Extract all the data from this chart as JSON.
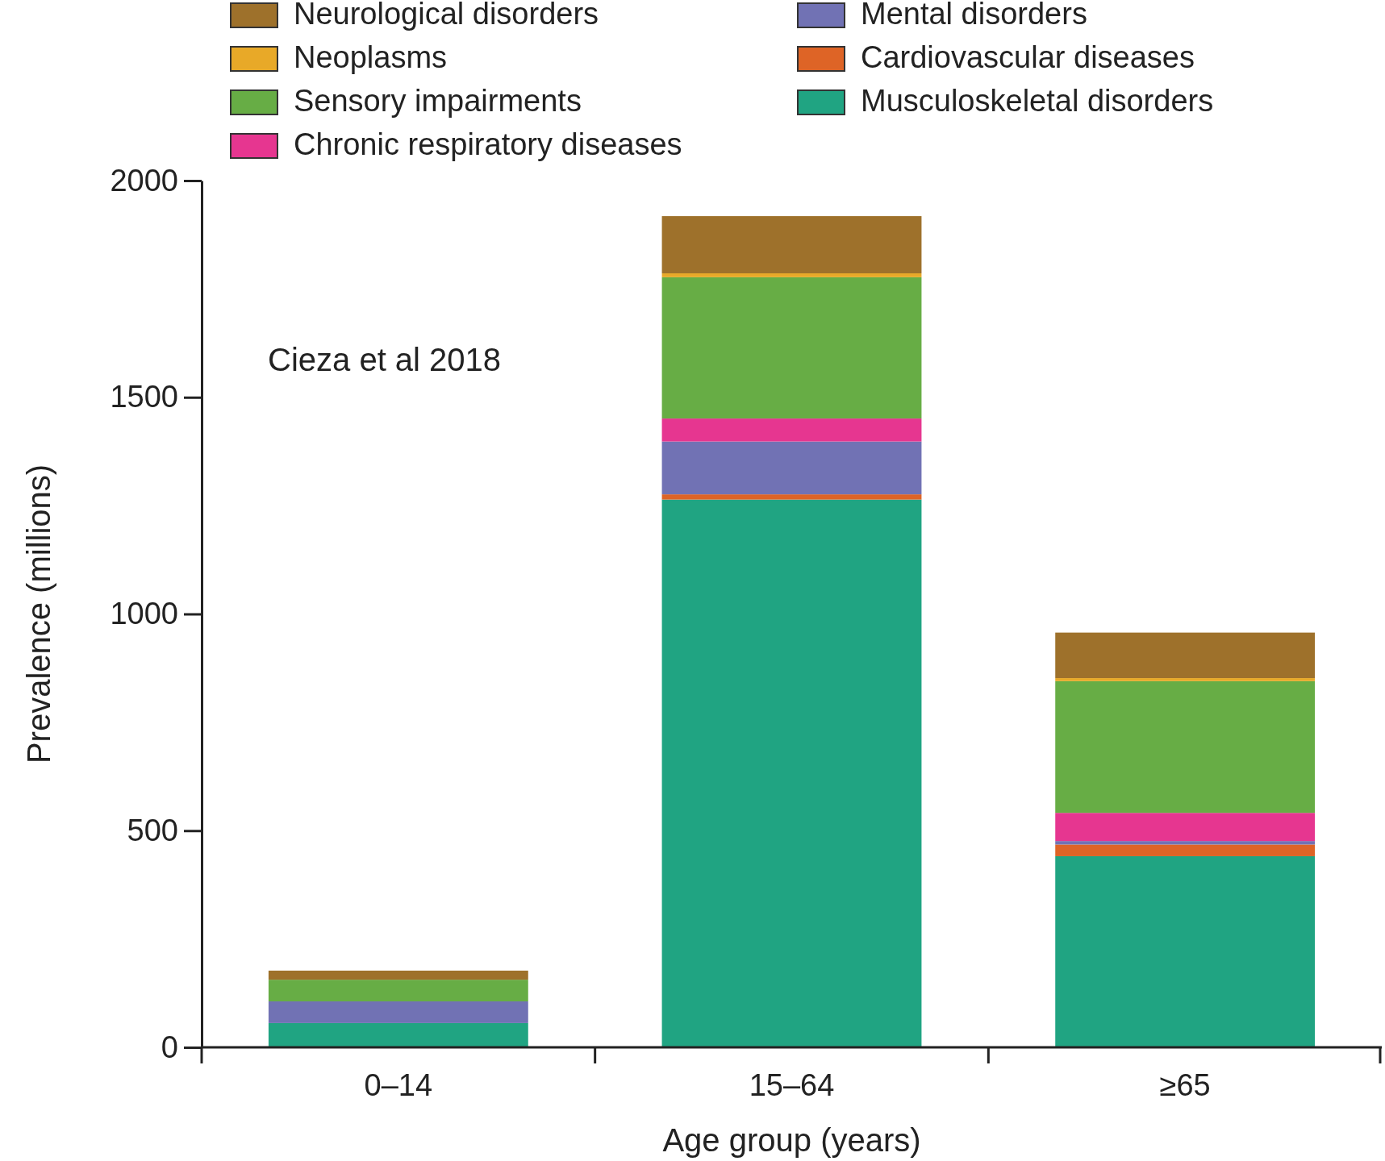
{
  "chart_data": {
    "type": "bar",
    "stacked": true,
    "xlabel": "Age group (years)",
    "ylabel": "Prevalence (millions)",
    "categories": [
      "0–14",
      "15–64",
      "≥65"
    ],
    "ylim": [
      0,
      2000
    ],
    "yticks": [
      0,
      500,
      1000,
      1500,
      2000
    ],
    "grid": false,
    "legend": "top",
    "annotations": [
      "Cieza et al 2018"
    ],
    "series": [
      {
        "name": "Musculoskeletal disorders",
        "color": "#20a482",
        "values": [
          56,
          1264,
          441
        ]
      },
      {
        "name": "Cardiovascular diseases",
        "color": "#de6426",
        "values": [
          0,
          12,
          27
        ]
      },
      {
        "name": "Mental disorders",
        "color": "#7172b4",
        "values": [
          50,
          122,
          8
        ]
      },
      {
        "name": "Chronic respiratory diseases",
        "color": "#e63690",
        "values": [
          0,
          53,
          65
        ]
      },
      {
        "name": "Sensory impairments",
        "color": "#67ad45",
        "values": [
          50,
          326,
          304
        ]
      },
      {
        "name": "Neoplasms",
        "color": "#e8a928",
        "values": [
          0,
          9,
          7
        ]
      },
      {
        "name": "Neurological disorders",
        "color": "#9e712b",
        "values": [
          21,
          132,
          105
        ]
      }
    ]
  }
}
